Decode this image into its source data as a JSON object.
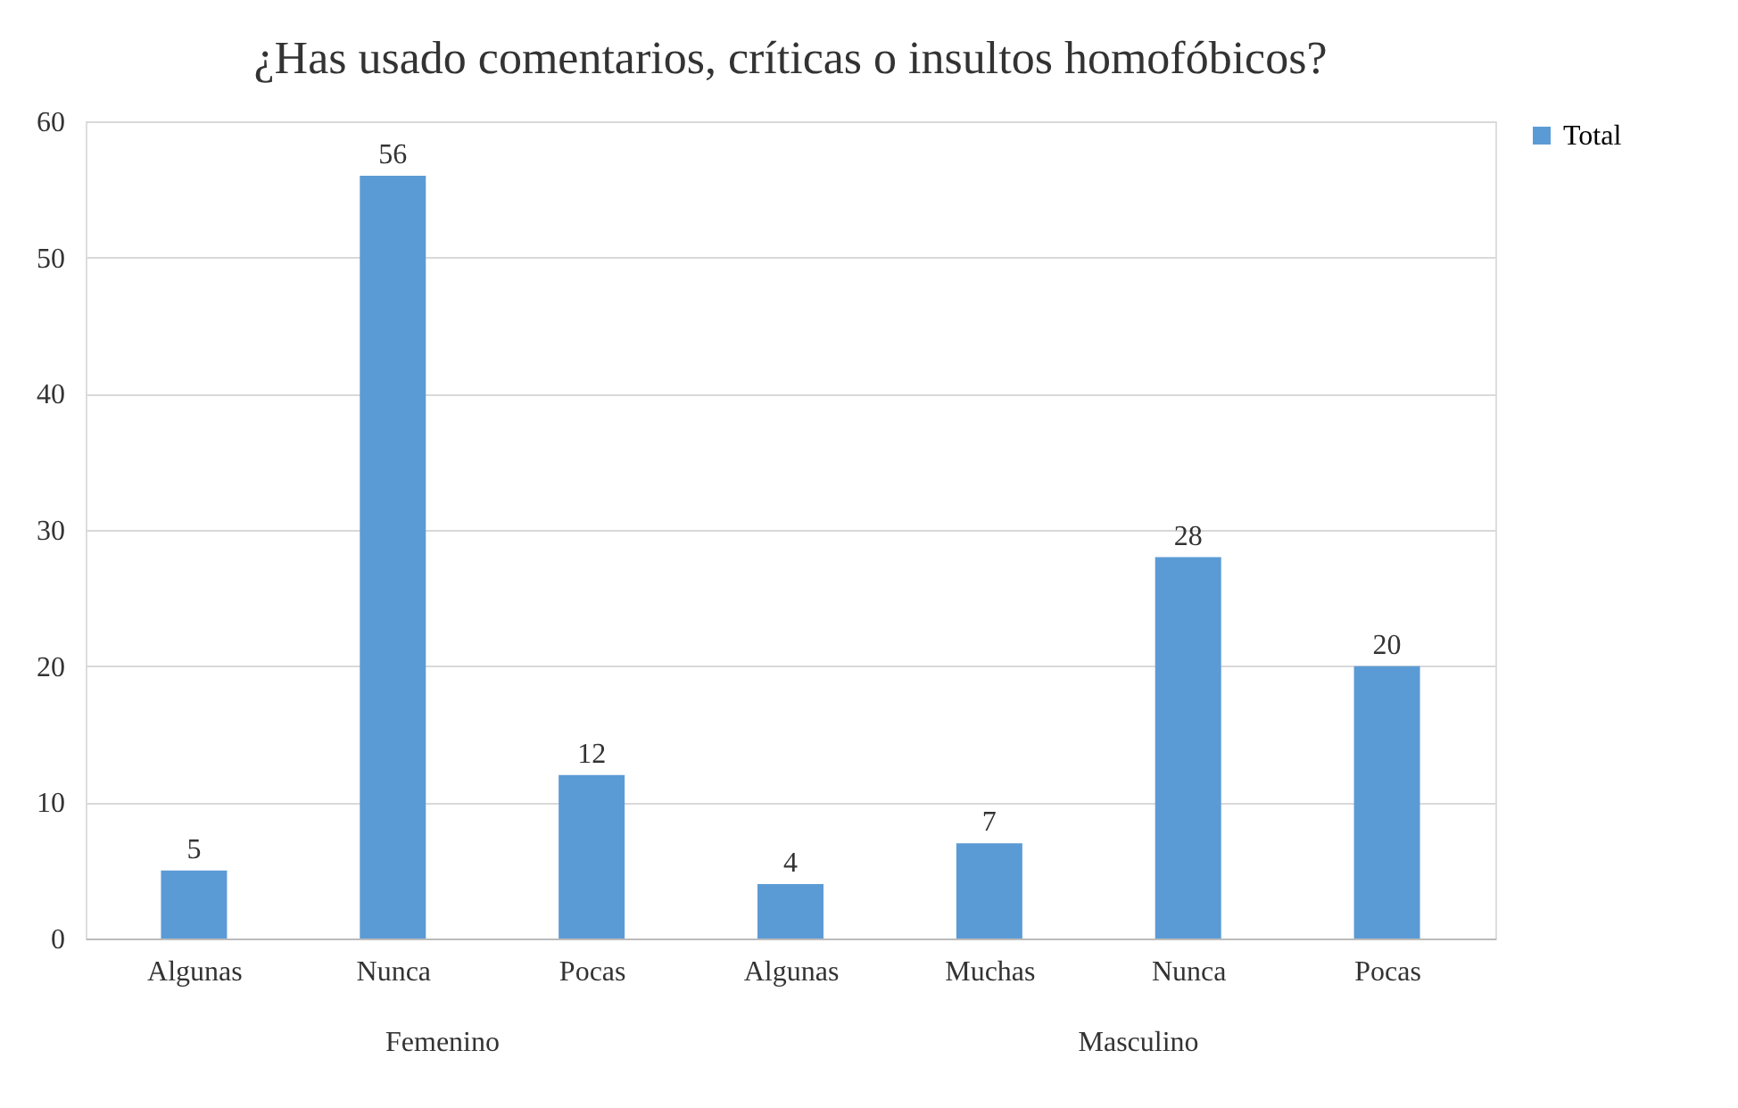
{
  "chart_data": {
    "type": "bar",
    "title": "¿Has usado comentarios, críticas o insultos homofóbicos?",
    "categories": [
      "Algunas",
      "Nunca",
      "Pocas",
      "Algunas",
      "Muchas",
      "Nunca",
      "Pocas"
    ],
    "series": [
      {
        "name": "Total",
        "color": "#5b9bd5",
        "values": [
          5,
          56,
          12,
          4,
          7,
          28,
          20
        ]
      }
    ],
    "ylim": [
      0,
      60
    ],
    "yticks": [
      0,
      10,
      20,
      30,
      40,
      50,
      60
    ],
    "grid": "y",
    "legend": "right",
    "data_labels": true,
    "annotations": [
      "Femenino",
      "Masculino"
    ]
  }
}
